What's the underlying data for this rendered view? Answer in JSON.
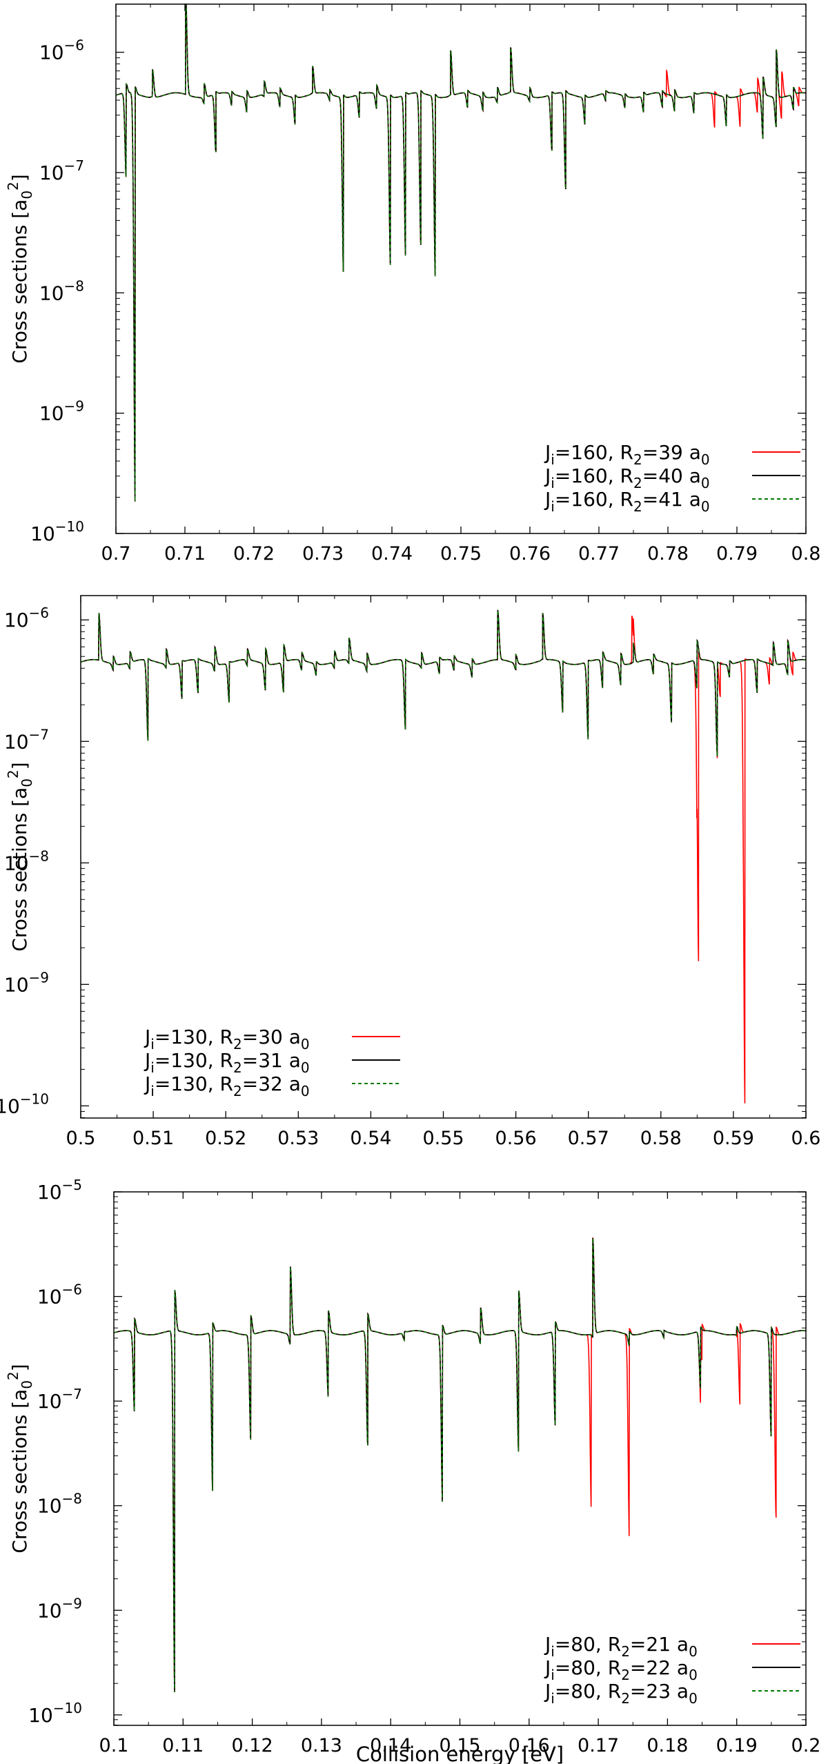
{
  "chart_data": [
    {
      "type": "line",
      "ylabel": "Cross sections [a",
      "ylabel_sub": "0",
      "ylabel_sup": "2",
      "ylabel_end": "]",
      "xlabel": "",
      "xlim": [
        0.7,
        0.8
      ],
      "ylim_log10": [
        -10,
        -5.6
      ],
      "yscale": "log",
      "xticks": [
        0.7,
        0.71,
        0.72,
        0.73,
        0.74,
        0.75,
        0.76,
        0.77,
        0.78,
        0.79,
        0.8
      ],
      "xtick_labels": [
        "0.7",
        "0.71",
        "0.72",
        "0.73",
        "0.74",
        "0.75",
        "0.76",
        "0.77",
        "0.78",
        "0.79",
        "0.8"
      ],
      "yticks_log10": [
        -10,
        -9,
        -8,
        -7,
        -6
      ],
      "ytick_labels": [
        "10",
        "10",
        "10",
        "10",
        "10"
      ],
      "ytick_exps": [
        "−10",
        "−9",
        "−8",
        "−7",
        "−6"
      ],
      "legend_position": "bottom-right",
      "baseline": 4.4e-07,
      "series": [
        {
          "name": "J=160, R=39 a",
          "name_parts": [
            "J",
            "i",
            "=160, R",
            "2",
            "=39 a",
            "0"
          ],
          "color": "#ff0000",
          "style": "solid"
        },
        {
          "name": "J=160, R=40 a",
          "name_parts": [
            "J",
            "i",
            "=160, R",
            "2",
            "=40 a",
            "0"
          ],
          "color": "#000000",
          "style": "solid"
        },
        {
          "name": "J=160, R=41 a",
          "name_parts": [
            "J",
            "i",
            "=160, R",
            "2",
            "=41 a",
            "0"
          ],
          "color": "#007700",
          "style": "dashed"
        }
      ],
      "resonances_common": [
        [
          0.7015,
          8.5e-08,
          5.2e-07
        ],
        [
          0.7028,
          1.6e-10,
          5e-07
        ],
        [
          0.7053,
          4.5e-07,
          7.5e-07
        ],
        [
          0.7101,
          4.4e-07,
          3.1e-06
        ],
        [
          0.7128,
          3.9e-07,
          5.7e-07
        ],
        [
          0.7145,
          1.45e-07,
          4.6e-07
        ],
        [
          0.7168,
          3.5e-07,
          4.6e-07
        ],
        [
          0.719,
          3.3e-07,
          5e-07
        ],
        [
          0.7215,
          4.2e-07,
          5.6e-07
        ],
        [
          0.7238,
          3.4e-07,
          4.9e-07
        ],
        [
          0.726,
          2.6e-07,
          4.6e-07
        ],
        [
          0.7285,
          4.5e-07,
          7.5e-07
        ],
        [
          0.731,
          3.9e-07,
          4.8e-07
        ],
        [
          0.733,
          1.45e-08,
          4.6e-07
        ],
        [
          0.7353,
          2.8e-07,
          4.6e-07
        ],
        [
          0.7378,
          3.3e-07,
          5.2e-07
        ],
        [
          0.7398,
          1.7e-08,
          4.6e-07
        ],
        [
          0.742,
          1.9e-08,
          4.6e-07
        ],
        [
          0.7442,
          2.4e-08,
          4.6e-07
        ],
        [
          0.7463,
          1.35e-08,
          4.6e-07
        ],
        [
          0.7485,
          4.5e-07,
          1.05e-06
        ],
        [
          0.751,
          3.3e-07,
          4.6e-07
        ],
        [
          0.7532,
          3.4e-07,
          4.8e-07
        ],
        [
          0.7553,
          3.9e-07,
          5.2e-07
        ],
        [
          0.7572,
          4.5e-07,
          1.05e-06
        ],
        [
          0.76,
          4e-07,
          5.2e-07
        ],
        [
          0.7632,
          1.5e-07,
          4.6e-07
        ],
        [
          0.7652,
          7e-08,
          4.6e-07
        ],
        [
          0.768,
          2.6e-07,
          4.6e-07
        ],
        [
          0.771,
          3.8e-07,
          4.6e-07
        ],
        [
          0.7738,
          3.5e-07,
          4.6e-07
        ],
        [
          0.7765,
          3.2e-07,
          4.7e-07
        ],
        [
          0.7792,
          3.4e-07,
          4.6e-07
        ],
        [
          0.781,
          3.3e-07,
          5e-07
        ],
        [
          0.7838,
          3.1e-07,
          4.6e-07
        ],
        [
          0.7885,
          2.5e-07,
          4.6e-07
        ],
        [
          0.7938,
          1.85e-07,
          6.1e-07
        ],
        [
          0.7957,
          2.5e-07,
          1.1e-06
        ],
        [
          0.7982,
          3.3e-07,
          5e-07
        ]
      ],
      "resonances_red": [
        [
          0.7798,
          4.2e-07,
          6.9e-07
        ],
        [
          0.7868,
          2.3e-07,
          4.6e-07
        ],
        [
          0.7905,
          2.4e-07,
          5e-07
        ],
        [
          0.793,
          3e-07,
          5.8e-07
        ],
        [
          0.7965,
          2.9e-07,
          7.2e-07
        ],
        [
          0.799,
          3.4e-07,
          4.9e-07
        ]
      ]
    },
    {
      "type": "line",
      "ylabel": "Cross sections [a",
      "ylabel_sub": "0",
      "ylabel_sup": "2",
      "ylabel_end": "]",
      "xlabel": "",
      "xlim": [
        0.5,
        0.6
      ],
      "ylim_log10": [
        -10.1,
        -5.8
      ],
      "yscale": "log",
      "xticks": [
        0.5,
        0.51,
        0.52,
        0.53,
        0.54,
        0.55,
        0.56,
        0.57,
        0.58,
        0.59,
        0.6
      ],
      "xtick_labels": [
        "0.5",
        "0.51",
        "0.52",
        "0.53",
        "0.54",
        "0.55",
        "0.56",
        "0.57",
        "0.58",
        "0.59",
        "0.6"
      ],
      "yticks_log10": [
        -10,
        -9,
        -8,
        -7,
        -6
      ],
      "ytick_labels": [
        "10",
        "10",
        "10",
        "10",
        "10"
      ],
      "ytick_exps": [
        "−10",
        "−9",
        "−8",
        "−7",
        "−6"
      ],
      "legend_position": "bottom-left",
      "baseline": 4.5e-07,
      "series": [
        {
          "name": "J=130, R=30 a",
          "name_parts": [
            "J",
            "i",
            "=130, R",
            "2",
            "=30 a",
            "0"
          ],
          "color": "#ff0000",
          "style": "solid"
        },
        {
          "name": "J=130, R=31 a",
          "name_parts": [
            "J",
            "i",
            "=130, R",
            "2",
            "=31 a",
            "0"
          ],
          "color": "#000000",
          "style": "solid"
        },
        {
          "name": "J=130, R=32 a",
          "name_parts": [
            "J",
            "i",
            "=130, R",
            "2",
            "=32 a",
            "0"
          ],
          "color": "#007700",
          "style": "dashed"
        }
      ],
      "resonances_common": [
        [
          0.5025,
          4.5e-07,
          1.1e-06
        ],
        [
          0.5045,
          4e-07,
          5.2e-07
        ],
        [
          0.5068,
          4e-07,
          5.5e-07
        ],
        [
          0.5093,
          9.5e-08,
          4.6e-07
        ],
        [
          0.5118,
          4.2e-07,
          6e-07
        ],
        [
          0.514,
          2.2e-07,
          4.6e-07
        ],
        [
          0.5162,
          2.4e-07,
          4.6e-07
        ],
        [
          0.5185,
          3.9e-07,
          6.2e-07
        ],
        [
          0.5205,
          2.1e-07,
          4.6e-07
        ],
        [
          0.523,
          4e-07,
          5.5e-07
        ],
        [
          0.5255,
          2.7e-07,
          6e-07
        ],
        [
          0.528,
          2.5e-07,
          6.2e-07
        ],
        [
          0.5305,
          3.7e-07,
          5.2e-07
        ],
        [
          0.5325,
          3.6e-07,
          4.7e-07
        ],
        [
          0.535,
          4e-07,
          5.5e-07
        ],
        [
          0.537,
          4.2e-07,
          6.8e-07
        ],
        [
          0.5395,
          3.9e-07,
          5.5e-07
        ],
        [
          0.5448,
          1.2e-07,
          4.6e-07
        ],
        [
          0.547,
          4.2e-07,
          5.6e-07
        ],
        [
          0.5495,
          3.5e-07,
          4.8e-07
        ],
        [
          0.5515,
          3.7e-07,
          4.9e-07
        ],
        [
          0.554,
          3.5e-07,
          5e-07
        ],
        [
          0.5575,
          4.5e-07,
          1.15e-06
        ],
        [
          0.56,
          4e-07,
          5.3e-07
        ],
        [
          0.5637,
          4.6e-07,
          1.1e-06
        ],
        [
          0.5665,
          1.7e-07,
          4.6e-07
        ],
        [
          0.57,
          1e-07,
          4.6e-07
        ],
        [
          0.572,
          2.6e-07,
          5.2e-07
        ],
        [
          0.5745,
          3e-07,
          5.5e-07
        ],
        [
          0.5762,
          4.6e-07,
          6.5e-07
        ],
        [
          0.579,
          3.4e-07,
          5e-07
        ],
        [
          0.5815,
          1.45e-07,
          4.6e-07
        ],
        [
          0.585,
          2.6e-07,
          6.5e-07
        ],
        [
          0.5878,
          7.5e-08,
          4.6e-07
        ],
        [
          0.5895,
          3.5e-07,
          4.8e-07
        ],
        [
          0.5933,
          2.4e-07,
          4.6e-07
        ],
        [
          0.5955,
          4.4e-07,
          6.8e-07
        ],
        [
          0.5975,
          3.6e-07,
          6.8e-07
        ]
      ],
      "resonances_red": [
        [
          0.576,
          4.6e-07,
          1.1e-06
        ],
        [
          0.5852,
          1.2e-09,
          4.6e-07
        ],
        [
          0.5882,
          2.4e-07,
          4.6e-07
        ],
        [
          0.5916,
          9.5e-11,
          4.6e-07
        ],
        [
          0.595,
          3e-07,
          5e-07
        ],
        [
          0.5982,
          3.5e-07,
          5.3e-07
        ]
      ]
    },
    {
      "type": "line",
      "ylabel": "Cross sections [a",
      "ylabel_sub": "0",
      "ylabel_sup": "2",
      "ylabel_end": "]",
      "xlabel": "Collision energy [eV]",
      "xlim": [
        0.1,
        0.2
      ],
      "ylim_log10": [
        -10.1,
        -5
      ],
      "yscale": "log",
      "xticks": [
        0.1,
        0.11,
        0.12,
        0.13,
        0.14,
        0.15,
        0.16,
        0.17,
        0.18,
        0.19,
        0.2
      ],
      "xtick_labels": [
        "0.1",
        "0.11",
        "0.12",
        "0.13",
        "0.14",
        "0.15",
        "0.16",
        "0.17",
        "0.18",
        "0.19",
        "0.2"
      ],
      "yticks_log10": [
        -10,
        -9,
        -8,
        -7,
        -6,
        -5
      ],
      "ytick_labels": [
        "10",
        "10",
        "10",
        "10",
        "10",
        "10"
      ],
      "ytick_exps": [
        "−10",
        "−9",
        "−8",
        "−7",
        "−6",
        "−5"
      ],
      "legend_position": "bottom-right",
      "baseline": 4.5e-07,
      "series": [
        {
          "name": "J=80, R=21 a",
          "name_parts": [
            "J",
            "i",
            "=80, R",
            "2",
            "=21 a",
            "0"
          ],
          "color": "#ff0000",
          "style": "solid"
        },
        {
          "name": "J=80, R=22 a",
          "name_parts": [
            "J",
            "i",
            "=80, R",
            "2",
            "=22 a",
            "0"
          ],
          "color": "#000000",
          "style": "solid"
        },
        {
          "name": "J=80, R=23 a",
          "name_parts": [
            "J",
            "i",
            "=80, R",
            "2",
            "=23 a",
            "0"
          ],
          "color": "#007700",
          "style": "dashed"
        }
      ],
      "resonances_common": [
        [
          0.103,
          7.5e-08,
          6e-07
        ],
        [
          0.1088,
          1.4e-10,
          1.1e-06
        ],
        [
          0.1143,
          1.3e-08,
          5.5e-07
        ],
        [
          0.1198,
          4.3e-08,
          6.8e-07
        ],
        [
          0.1255,
          3.6e-07,
          2e-06
        ],
        [
          0.131,
          1.05e-07,
          7.2e-07
        ],
        [
          0.1367,
          3.6e-08,
          6.5e-07
        ],
        [
          0.142,
          3.8e-07,
          4.6e-07
        ],
        [
          0.1475,
          1.05e-08,
          5.5e-07
        ],
        [
          0.153,
          3.6e-07,
          8e-07
        ],
        [
          0.1585,
          3e-08,
          1.1e-06
        ],
        [
          0.1638,
          5.5e-08,
          5.5e-07
        ],
        [
          0.1692,
          4.2e-07,
          3.7e-06
        ],
        [
          0.1745,
          3.5e-07,
          4.8e-07
        ],
        [
          0.1795,
          3.9e-07,
          4.6e-07
        ],
        [
          0.1848,
          1.25e-07,
          4.9e-07
        ],
        [
          0.19,
          4.4e-07,
          5.3e-07
        ],
        [
          0.195,
          4.5e-08,
          5.2e-07
        ]
      ],
      "resonances_red": [
        [
          0.169,
          9.5e-09,
          4.6e-07
        ],
        [
          0.1745,
          6.2e-09,
          4.8e-07
        ],
        [
          0.185,
          2.2e-07,
          5e-07
        ],
        [
          0.1905,
          9e-08,
          5.5e-07
        ],
        [
          0.1957,
          8e-09,
          5.3e-07
        ]
      ]
    }
  ]
}
